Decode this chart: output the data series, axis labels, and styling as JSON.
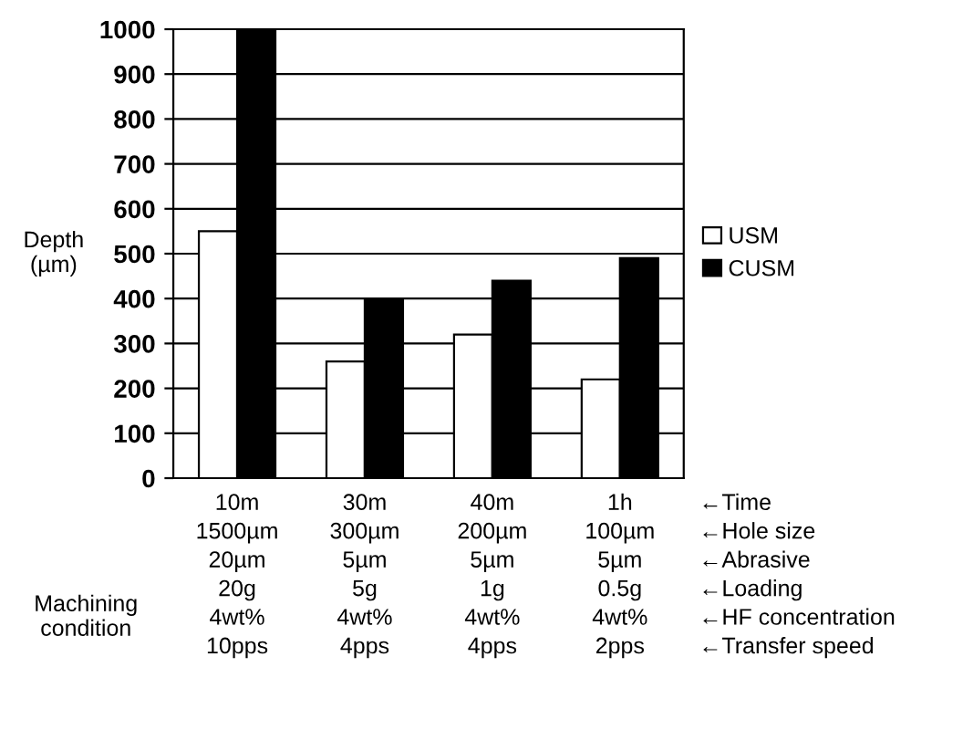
{
  "chart_data": {
    "type": "bar",
    "ylabel": "Depth\n(µm)",
    "categories": [
      "10m\n1500µm\n20µm\n20g\n4wt%\n10pps",
      "30m\n300µm\n5µm\n5g\n4wt%\n4pps",
      "40m\n200µm\n5µm\n1g\n4wt%\n4pps",
      "1h\n100µm\n5µm\n0.5g\n4wt%\n2pps"
    ],
    "series": [
      {
        "name": "USM",
        "color": "#ffffff",
        "values": [
          550,
          260,
          320,
          220
        ]
      },
      {
        "name": "CUSM",
        "color": "#000000",
        "values": [
          1000,
          400,
          440,
          490
        ]
      }
    ],
    "ylim": [
      0,
      1000
    ],
    "yticks": [
      0,
      100,
      200,
      300,
      400,
      500,
      600,
      700,
      800,
      900,
      1000
    ],
    "grid": "y",
    "legend": "right",
    "annotations": [
      "←Time\n←Hole size\n←Abrasive\n←Loading\n←HF concentration\n←Transfer speed",
      "Machining\ncondition"
    ]
  }
}
